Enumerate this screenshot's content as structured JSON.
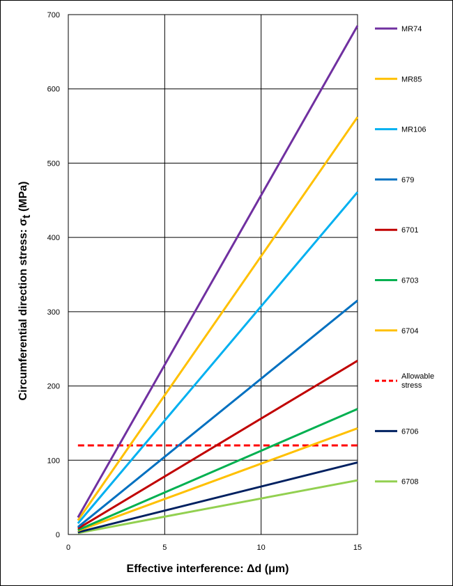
{
  "chart_data": {
    "type": "line",
    "title": "",
    "xlabel": "Effective interference: Δd (μm)",
    "ylabel": "Circumferential direction stress: σt (MPa)",
    "ylabel_main": "Circumferential direction stress: σ",
    "ylabel_sub": "t",
    "ylabel_tail": " (MPa)",
    "xlim": [
      0,
      15
    ],
    "ylim": [
      0,
      700
    ],
    "xticks": [
      0,
      5,
      10,
      15
    ],
    "yticks": [
      0,
      100,
      200,
      300,
      400,
      500,
      600,
      700
    ],
    "grid": true,
    "legend_position": "right",
    "series": [
      {
        "name": "MR74",
        "color": "#7030A0",
        "dash": false,
        "x": [
          0.5,
          15
        ],
        "y": [
          23,
          685
        ]
      },
      {
        "name": "MR85",
        "color": "#FFC000",
        "dash": false,
        "x": [
          0.5,
          15
        ],
        "y": [
          19,
          562
        ]
      },
      {
        "name": "MR106",
        "color": "#00B0F0",
        "dash": false,
        "x": [
          0.5,
          15
        ],
        "y": [
          15,
          461
        ]
      },
      {
        "name": "679",
        "color": "#0070C0",
        "dash": false,
        "x": [
          0.5,
          15
        ],
        "y": [
          10,
          315
        ]
      },
      {
        "name": "6701",
        "color": "#C00000",
        "dash": false,
        "x": [
          0.5,
          15
        ],
        "y": [
          8,
          234
        ]
      },
      {
        "name": "6703",
        "color": "#00B050",
        "dash": false,
        "x": [
          0.5,
          15
        ],
        "y": [
          6,
          169
        ]
      },
      {
        "name": "6704",
        "color": "#FFC000",
        "dash": false,
        "x": [
          0.5,
          15
        ],
        "y": [
          5,
          143
        ]
      },
      {
        "name": "Allowable stress",
        "color": "#FF0000",
        "dash": true,
        "x": [
          0.5,
          15
        ],
        "y": [
          120,
          120
        ]
      },
      {
        "name": "6706",
        "color": "#002060",
        "dash": false,
        "x": [
          0.5,
          15
        ],
        "y": [
          3,
          97
        ]
      },
      {
        "name": "6708",
        "color": "#92D050",
        "dash": false,
        "x": [
          0.5,
          15
        ],
        "y": [
          2,
          73
        ]
      }
    ]
  }
}
